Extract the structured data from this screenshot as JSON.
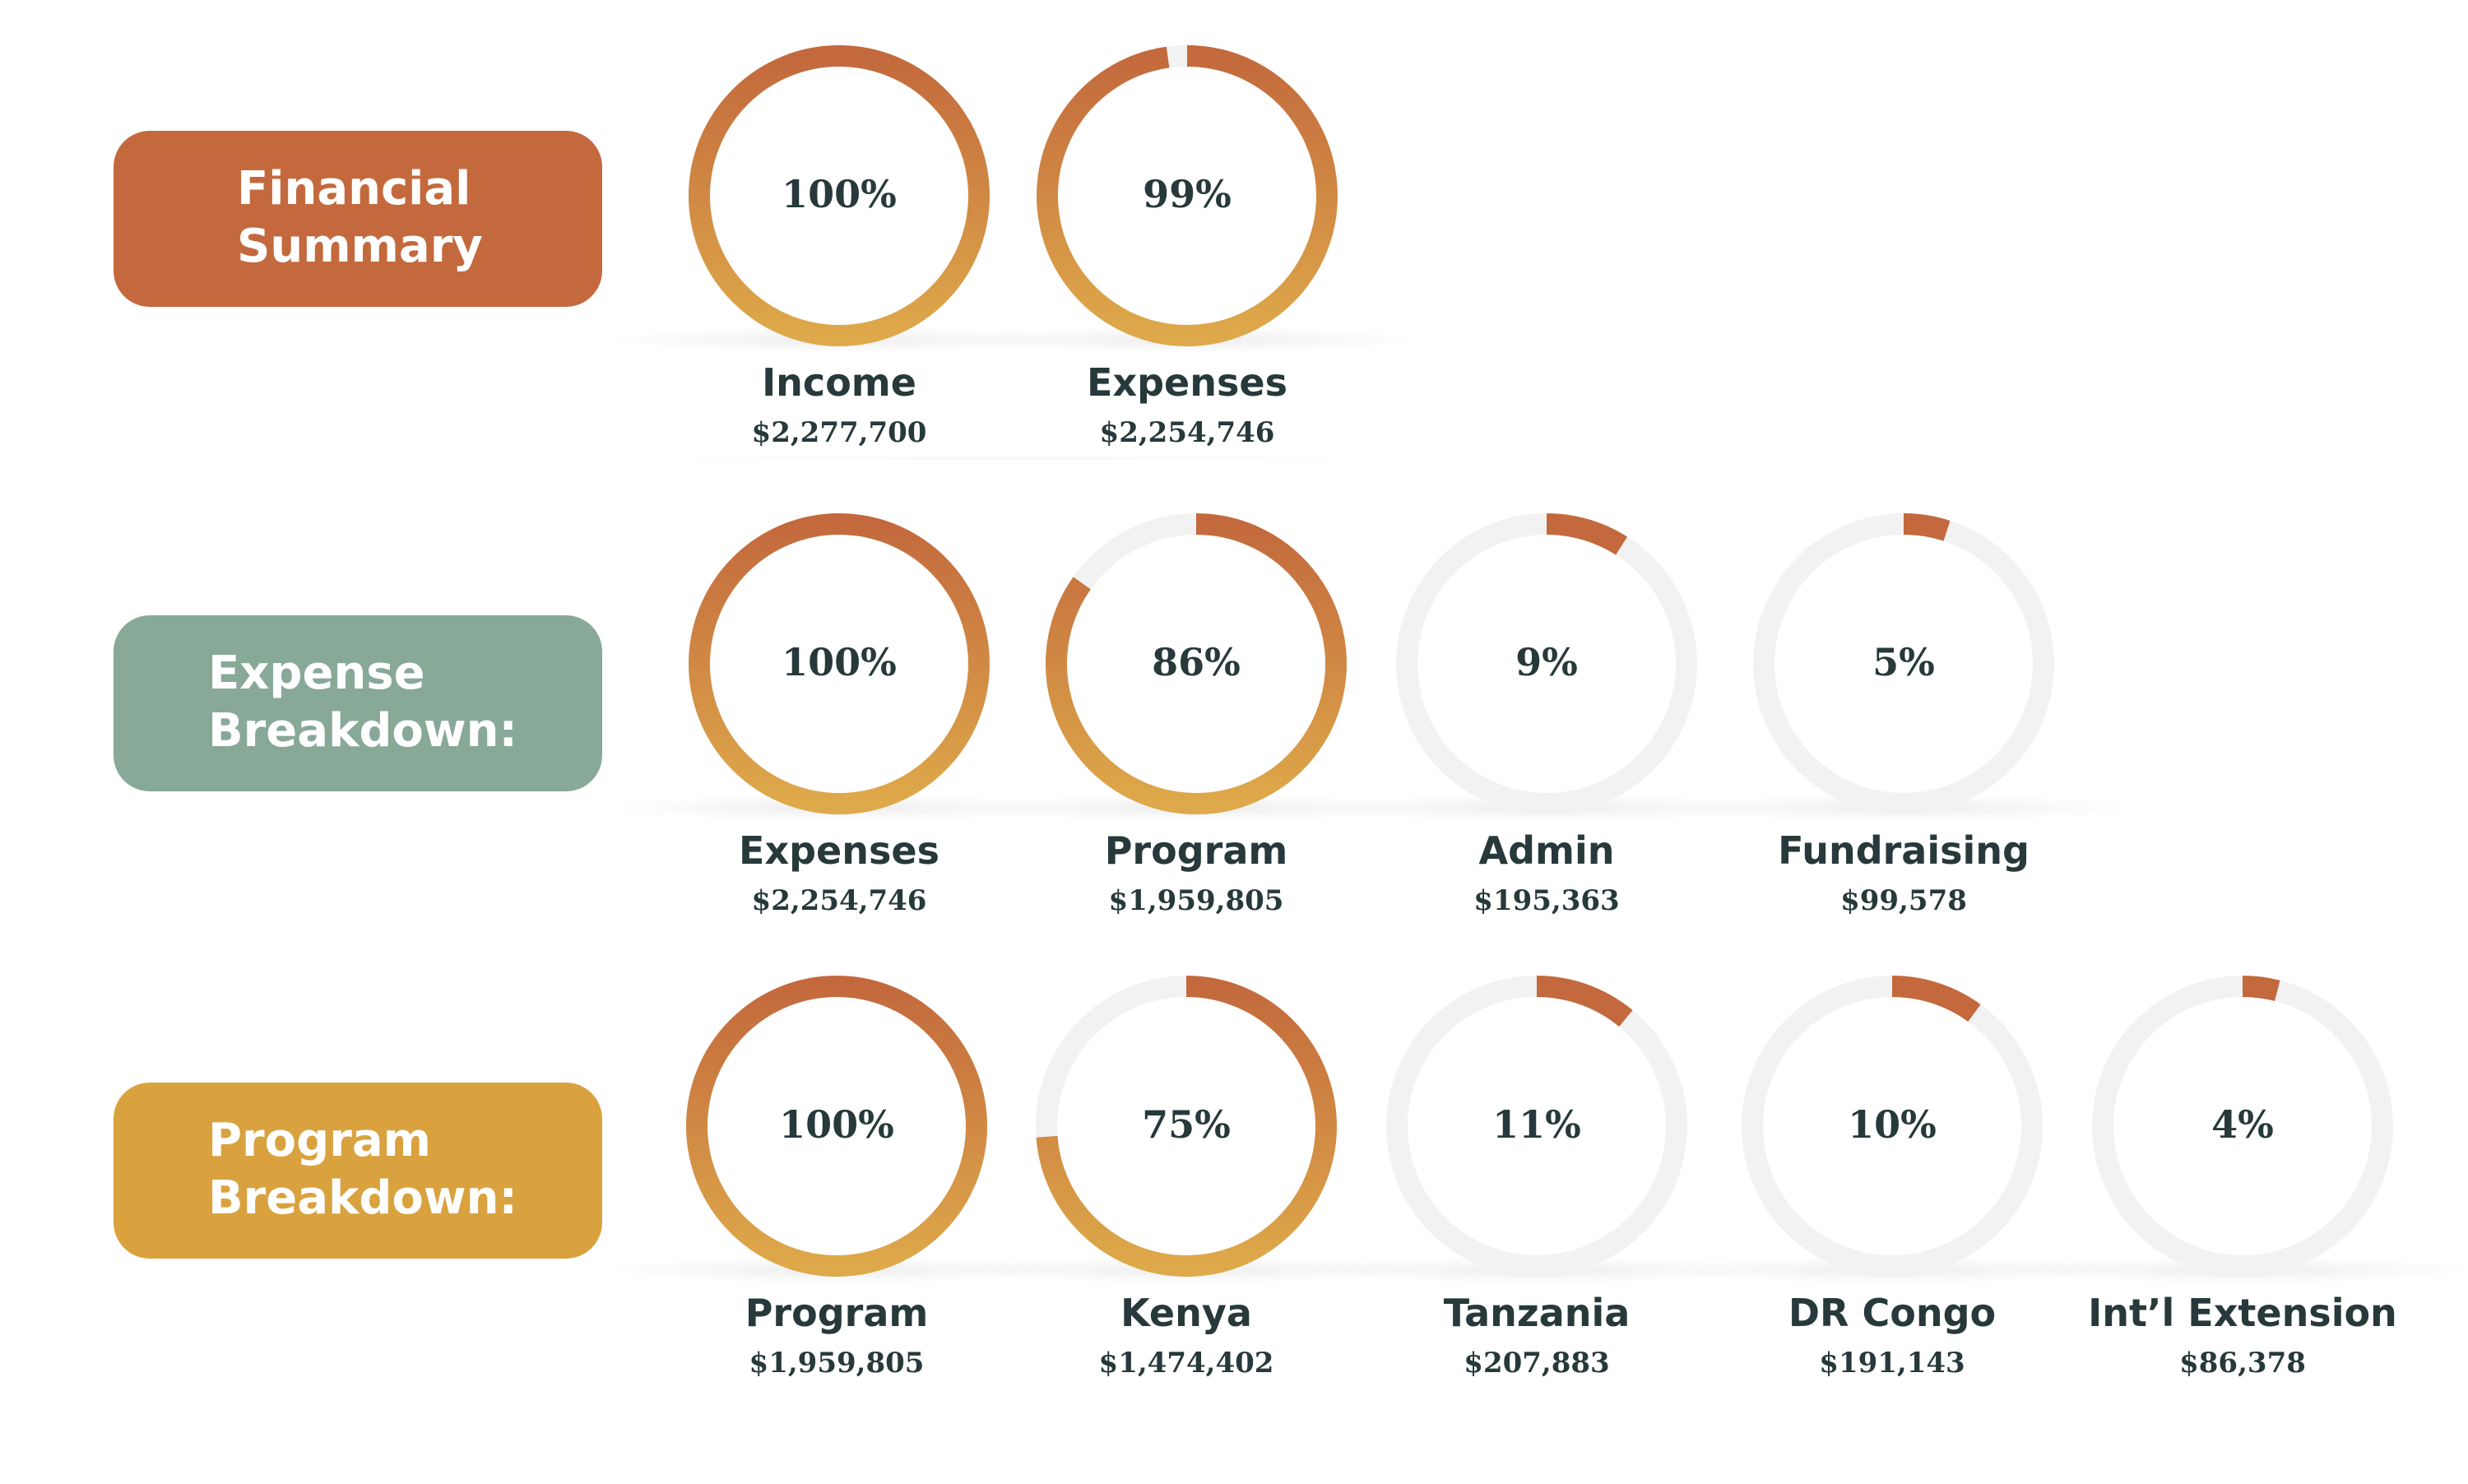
{
  "colors": {
    "arc_start": "#c3693d",
    "arc_end": "#dea94a",
    "track": "#f2f2f2",
    "text": "#27393a",
    "financial": "#c3693d",
    "expense": "#88a898",
    "program": "#d9a23e"
  },
  "sections": {
    "financial": {
      "line1": "Financial",
      "line2": "Summary"
    },
    "expense": {
      "line1": "Expense",
      "line2": "Breakdown:"
    },
    "program": {
      "line1": "Program",
      "line2": "Breakdown:"
    }
  },
  "chart_data": [
    {
      "type": "donut",
      "group": "Financial Summary",
      "items": [
        {
          "label": "Income",
          "amount": "$2,277,700",
          "percent": 100,
          "percent_label": "100%"
        },
        {
          "label": "Expenses",
          "amount": "$2,254,746",
          "percent": 99,
          "percent_label": "99%"
        }
      ]
    },
    {
      "type": "donut",
      "group": "Expense Breakdown:",
      "items": [
        {
          "label": "Expenses",
          "amount": "$2,254,746",
          "percent": 100,
          "percent_label": "100%"
        },
        {
          "label": "Program",
          "amount": "$1,959,805",
          "percent": 86,
          "percent_label": "86%"
        },
        {
          "label": "Admin",
          "amount": "$195,363",
          "percent": 9,
          "percent_label": "9%"
        },
        {
          "label": "Fundraising",
          "amount": "$99,578",
          "percent": 5,
          "percent_label": "5%"
        }
      ]
    },
    {
      "type": "donut",
      "group": "Program Breakdown:",
      "items": [
        {
          "label": "Program",
          "amount": "$1,959,805",
          "percent": 100,
          "percent_label": "100%"
        },
        {
          "label": "Kenya",
          "amount": "$1,474,402",
          "percent": 75,
          "percent_label": "75%"
        },
        {
          "label": "Tanzania",
          "amount": "$207,883",
          "percent": 11,
          "percent_label": "11%"
        },
        {
          "label": "DR Congo",
          "amount": "$191,143",
          "percent": 10,
          "percent_label": "10%"
        },
        {
          "label": "Int’l Extension",
          "amount": "$86,378",
          "percent": 4,
          "percent_label": "4%"
        }
      ]
    }
  ]
}
